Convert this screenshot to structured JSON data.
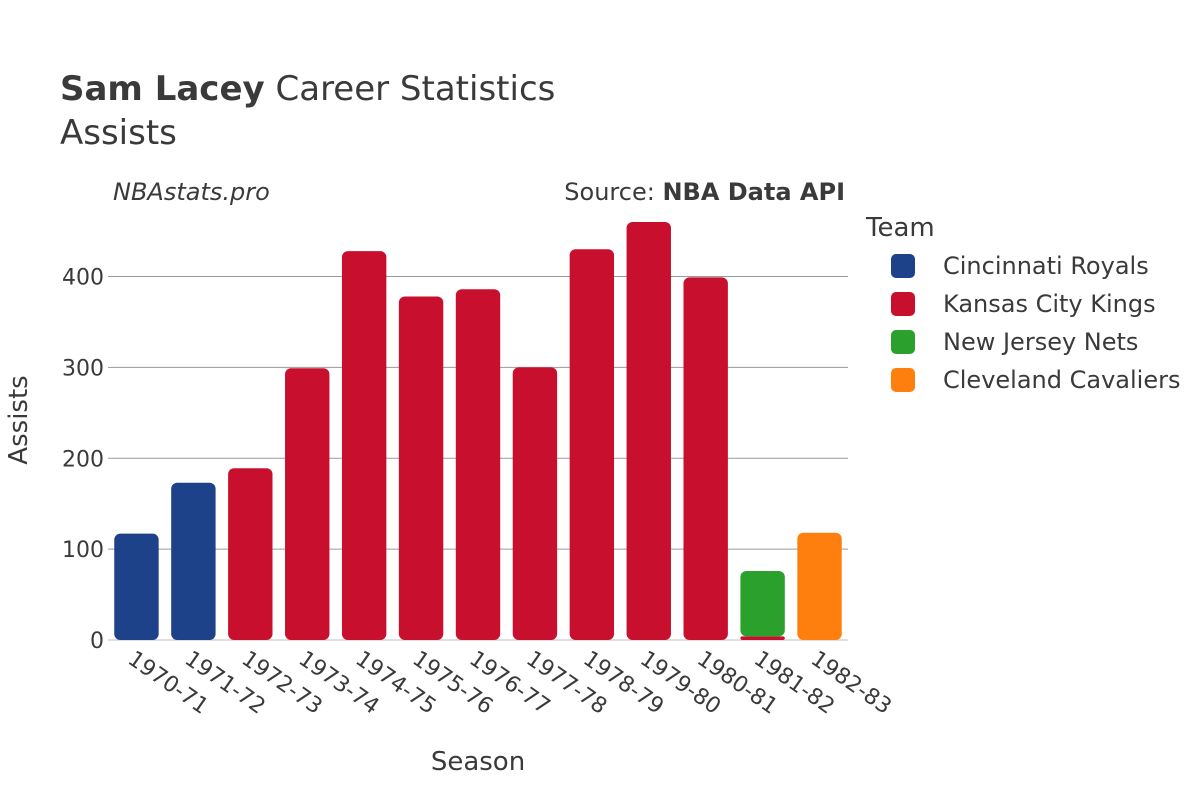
{
  "chart_data": {
    "type": "bar",
    "title_bold": "Sam Lacey",
    "title_rest": " Career Statistics",
    "subtitle": "Assists",
    "watermark": "NBAstats.pro",
    "source_label": "Source: ",
    "source_name": "NBA Data API",
    "xlabel": "Season",
    "ylabel": "Assists",
    "ylim": [
      0,
      460
    ],
    "yticks": [
      0,
      100,
      200,
      300,
      400
    ],
    "grid": true,
    "legend_title": "Team",
    "legend_position": "right",
    "categories": [
      "1970-71",
      "1971-72",
      "1972-73",
      "1973-74",
      "1974-75",
      "1975-76",
      "1976-77",
      "1977-78",
      "1978-79",
      "1979-80",
      "1980-81",
      "1981-82",
      "1982-83"
    ],
    "series": [
      {
        "name": "Cincinnati Royals",
        "color": "#1d428a",
        "values": [
          117,
          173,
          0,
          0,
          0,
          0,
          0,
          0,
          0,
          0,
          0,
          0,
          0
        ]
      },
      {
        "name": "Kansas City Kings",
        "color": "#c8102e",
        "values": [
          0,
          0,
          189,
          299,
          428,
          378,
          386,
          300,
          430,
          460,
          399,
          4,
          0
        ]
      },
      {
        "name": "New Jersey Nets",
        "color": "#2ca02c",
        "values": [
          0,
          0,
          0,
          0,
          0,
          0,
          0,
          0,
          0,
          0,
          0,
          72,
          0
        ]
      },
      {
        "name": "Cleveland Cavaliers",
        "color": "#ff7f0e",
        "values": [
          0,
          0,
          0,
          0,
          0,
          0,
          0,
          0,
          0,
          0,
          0,
          0,
          118
        ]
      }
    ]
  }
}
